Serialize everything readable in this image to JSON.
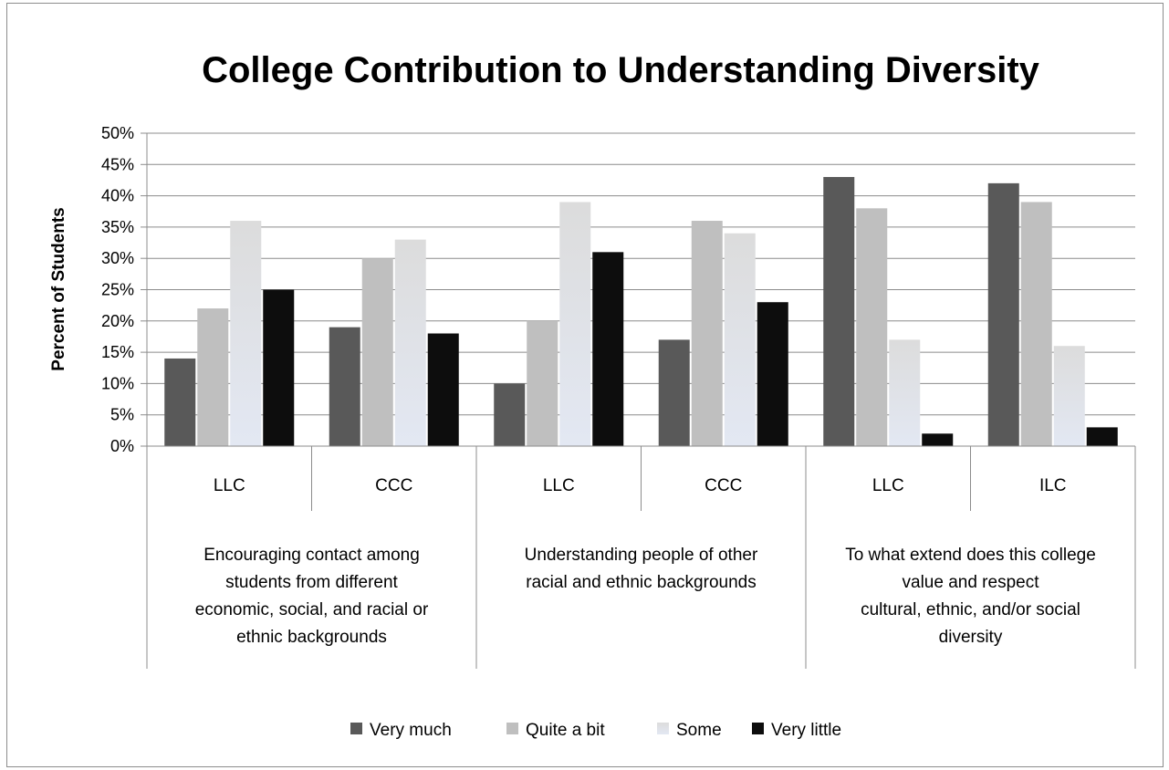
{
  "chart_data": {
    "type": "bar",
    "title": "College Contribution to Understanding Diversity",
    "ylabel": "Percent of Students",
    "xlabel": "",
    "ylim": [
      0,
      50
    ],
    "yticks": [
      "0%",
      "5%",
      "10%",
      "15%",
      "20%",
      "25%",
      "30%",
      "35%",
      "40%",
      "45%",
      "50%"
    ],
    "grid": true,
    "legend_position": "bottom",
    "categories": [
      "LLC",
      "CCC",
      "LLC",
      "CCC",
      "LLC",
      "ILC"
    ],
    "groups": [
      {
        "lines": [
          "Encouraging contact among",
          "students from different",
          "economic, social, and racial or",
          "ethnic backgrounds"
        ],
        "span": [
          0,
          1
        ]
      },
      {
        "lines": [
          "Understanding people of other",
          "racial and ethnic backgrounds"
        ],
        "span": [
          2,
          3
        ]
      },
      {
        "lines": [
          "To what extend does this college",
          "value and respect",
          "cultural, ethnic, and/or social",
          "diversity"
        ],
        "span": [
          4,
          5
        ]
      }
    ],
    "series": [
      {
        "name": "Very much",
        "color": "#595959",
        "values": [
          14,
          19,
          10,
          17,
          43,
          42
        ]
      },
      {
        "name": "Quite a bit",
        "color": "#bfbfbf",
        "values": [
          22,
          30,
          20,
          36,
          38,
          39
        ]
      },
      {
        "name": "Some",
        "color": "gradient-light",
        "values": [
          36,
          33,
          39,
          34,
          17,
          16
        ]
      },
      {
        "name": "Very little",
        "color": "#0d0d0d",
        "values": [
          25,
          18,
          31,
          23,
          2,
          3
        ]
      }
    ]
  }
}
